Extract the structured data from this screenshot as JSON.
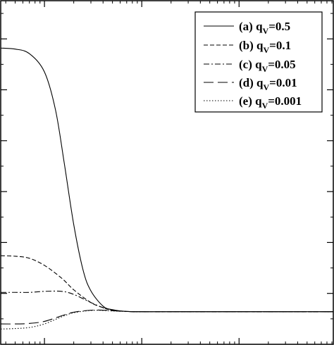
{
  "chart_data": {
    "type": "line",
    "title": "",
    "xlabel": "",
    "ylabel": "",
    "xscale": "log",
    "xlim": [
      0.0355,
      93
    ],
    "ylim": [
      0,
      6.75
    ],
    "x_major_ticks": [
      0.1,
      1,
      10
    ],
    "y_major_ticks": [
      1,
      2,
      3,
      4,
      5,
      6
    ],
    "grid": false,
    "legend": "top-right",
    "series": [
      {
        "name": "(a) q",
        "subscript": "V",
        "value": "=0.5",
        "dash": "solid",
        "x": [
          0.0355,
          0.05,
          0.07,
          0.1,
          0.13,
          0.16,
          0.2,
          0.25,
          0.3,
          0.4,
          0.5,
          0.7,
          1,
          1.5,
          3,
          10,
          93
        ],
        "y": [
          5.82,
          5.8,
          5.71,
          5.35,
          4.6,
          3.55,
          2.35,
          1.45,
          1.05,
          0.75,
          0.68,
          0.645,
          0.64,
          0.64,
          0.64,
          0.64,
          0.64
        ]
      },
      {
        "name": "(b) q",
        "subscript": "V",
        "value": "=0.1",
        "dash": "dashed",
        "x": [
          0.0355,
          0.05,
          0.07,
          0.1,
          0.15,
          0.2,
          0.3,
          0.4,
          0.5,
          0.7,
          1,
          3,
          93
        ],
        "y": [
          1.74,
          1.73,
          1.69,
          1.55,
          1.3,
          1.07,
          0.82,
          0.72,
          0.67,
          0.645,
          0.64,
          0.64,
          0.64
        ]
      },
      {
        "name": "(c) q",
        "subscript": "V",
        "value": "=0.05",
        "dash": "dashdot",
        "x": [
          0.0355,
          0.05,
          0.07,
          0.1,
          0.15,
          0.2,
          0.3,
          0.4,
          0.5,
          0.7,
          1,
          3,
          93
        ],
        "y": [
          1.02,
          1.02,
          1.02,
          1.04,
          1.04,
          0.98,
          0.82,
          0.72,
          0.67,
          0.645,
          0.64,
          0.64,
          0.64
        ]
      },
      {
        "name": "(d) q",
        "subscript": "V",
        "value": "=0.01",
        "dash": "longdash",
        "x": [
          0.0355,
          0.05,
          0.07,
          0.1,
          0.15,
          0.2,
          0.3,
          0.4,
          0.5,
          0.7,
          1,
          3,
          93
        ],
        "y": [
          0.4,
          0.4,
          0.41,
          0.45,
          0.56,
          0.63,
          0.67,
          0.67,
          0.66,
          0.645,
          0.64,
          0.64,
          0.64
        ]
      },
      {
        "name": "(e) q",
        "subscript": "V",
        "value": "=0.001",
        "dash": "dotted",
        "x": [
          0.0355,
          0.05,
          0.07,
          0.1,
          0.15,
          0.2,
          0.3,
          0.4,
          0.5,
          0.7,
          1,
          3,
          93
        ],
        "y": [
          0.3,
          0.31,
          0.33,
          0.4,
          0.54,
          0.62,
          0.665,
          0.665,
          0.655,
          0.645,
          0.64,
          0.64,
          0.64
        ]
      }
    ]
  }
}
